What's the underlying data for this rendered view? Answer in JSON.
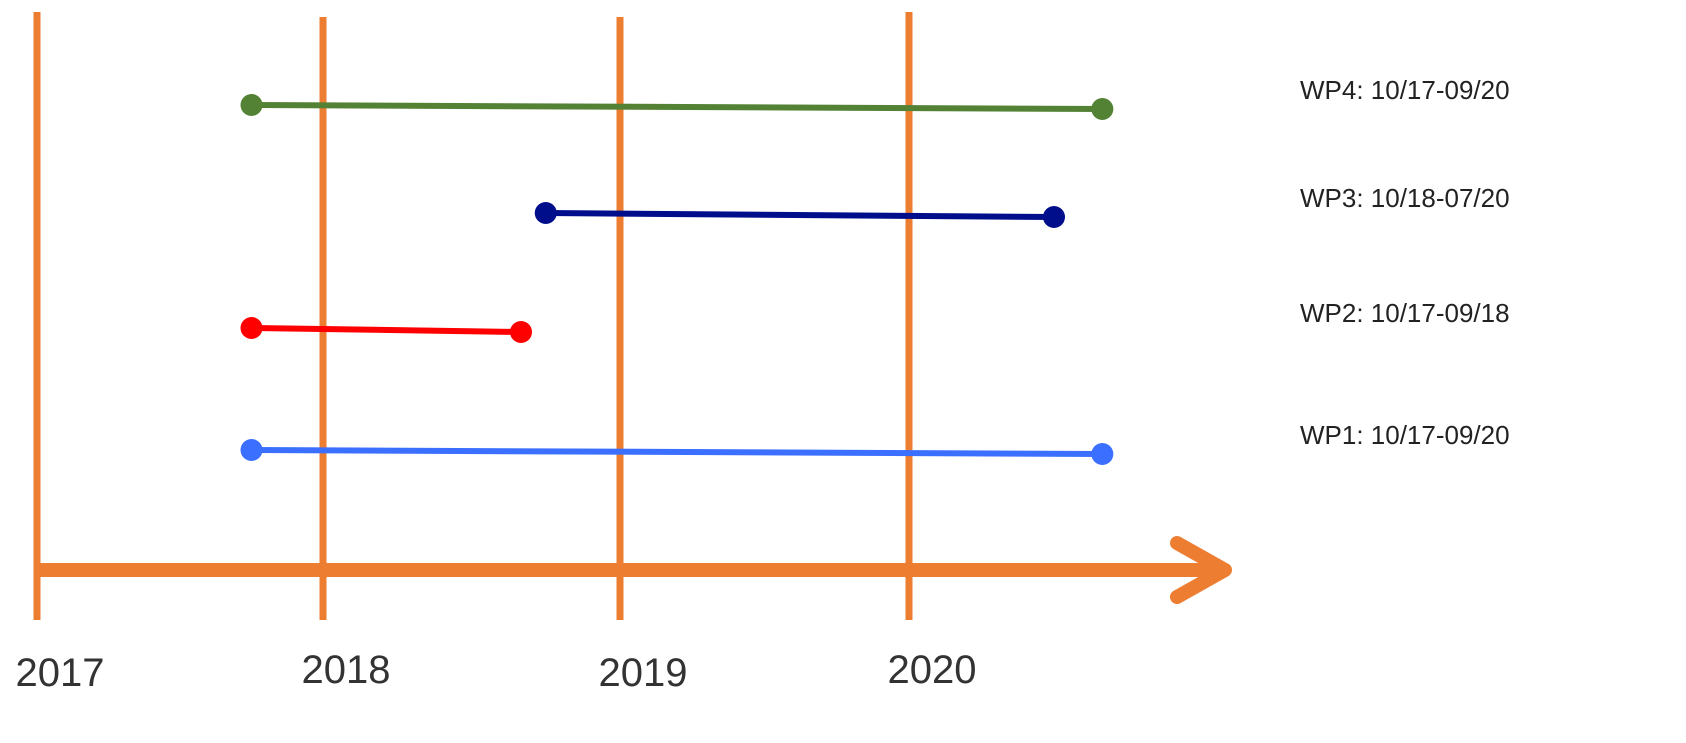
{
  "colors": {
    "axis": "#ED7D31",
    "background": "#FFFFFF",
    "label_text": "#222222",
    "year_text": "#333333"
  },
  "years": [
    {
      "label": "2017",
      "value": 2017
    },
    {
      "label": "2018",
      "value": 2018
    },
    {
      "label": "2019",
      "value": 2019
    },
    {
      "label": "2020",
      "value": 2020
    }
  ],
  "work_packages": [
    {
      "id": "WP4",
      "label": "WP4: 10/17-09/20",
      "start": "2017-10",
      "end": "2020-09",
      "color": "#548235"
    },
    {
      "id": "WP3",
      "label": "WP3: 10/18-07/20",
      "start": "2018-10",
      "end": "2020-07",
      "color": "#000E8C"
    },
    {
      "id": "WP2",
      "label": "WP2: 10/17-09/18",
      "start": "2017-10",
      "end": "2018-09",
      "color": "#FF0000"
    },
    {
      "id": "WP1",
      "label": "WP1: 10/17-09/20",
      "start": "2017-10",
      "end": "2020-09",
      "color": "#3B6FFF"
    }
  ]
}
